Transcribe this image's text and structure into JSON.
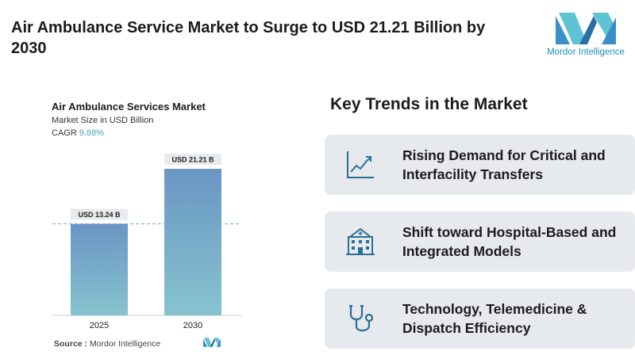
{
  "headline": "Air Ambulance Service Market to Surge to USD 21.21 Billion by 2030",
  "brand": {
    "name": "Mordor Intelligence",
    "color": "#1f8fbf"
  },
  "chart_data": {
    "type": "bar",
    "title": "Air Ambulance Services Market",
    "subtitle": "Market Size in USD Billion",
    "cagr_label": "CAGR",
    "cagr_value": "9.88%",
    "categories": [
      "2025",
      "2030"
    ],
    "values": [
      13.24,
      21.21
    ],
    "value_labels": [
      "USD 13.24 B",
      "USD 21.21 B"
    ],
    "ylim": [
      0,
      25
    ],
    "grid": false,
    "reference_line_at": 13.24,
    "bar_gradient": [
      "#6a96c4",
      "#86c3cf"
    ]
  },
  "source": {
    "label": "Source :",
    "value": "Mordor Intelligence"
  },
  "trends": {
    "title": "Key Trends in the Market",
    "items": [
      {
        "icon": "trending-chart-icon",
        "text": "Rising Demand for Critical and Interfacility Transfers"
      },
      {
        "icon": "hospital-building-icon",
        "text": "Shift toward Hospital-Based and Integrated Models"
      },
      {
        "icon": "stethoscope-icon",
        "text": "Technology, Telemedicine & Dispatch Efficiency"
      }
    ]
  }
}
